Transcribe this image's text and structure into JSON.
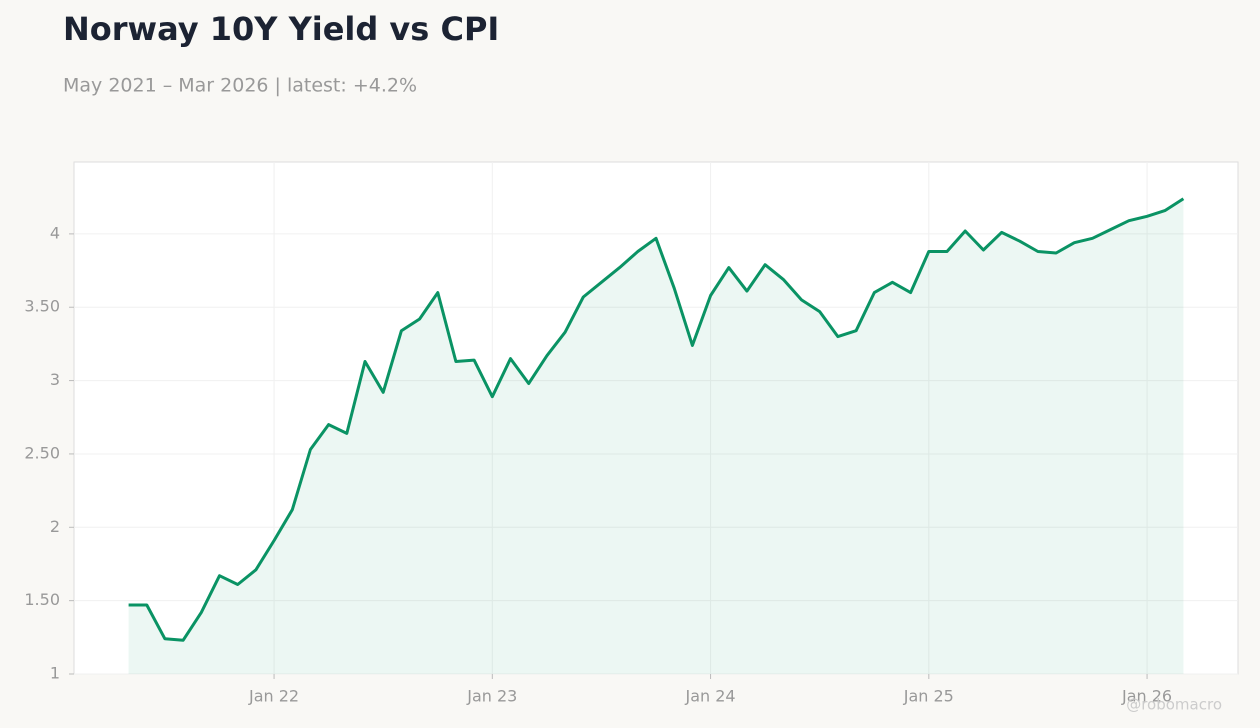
{
  "chart_data": {
    "type": "line",
    "title": "Norway 10Y Yield vs CPI",
    "subtitle": "May 2021 – Mar 2026 | latest: +4.2%",
    "watermark": "@robomacro",
    "x": [
      "2021-05",
      "2021-06",
      "2021-07",
      "2021-08",
      "2021-09",
      "2021-10",
      "2021-11",
      "2021-12",
      "2022-01",
      "2022-02",
      "2022-03",
      "2022-04",
      "2022-05",
      "2022-06",
      "2022-07",
      "2022-08",
      "2022-09",
      "2022-10",
      "2022-11",
      "2022-12",
      "2023-01",
      "2023-02",
      "2023-03",
      "2023-04",
      "2023-05",
      "2023-06",
      "2023-07",
      "2023-08",
      "2023-09",
      "2023-10",
      "2023-11",
      "2023-12",
      "2024-01",
      "2024-02",
      "2024-03",
      "2024-04",
      "2024-05",
      "2024-06",
      "2024-07",
      "2024-08",
      "2024-09",
      "2024-10",
      "2024-11",
      "2024-12",
      "2025-01",
      "2025-02",
      "2025-03",
      "2025-04",
      "2025-05",
      "2025-06",
      "2025-07",
      "2025-08",
      "2025-09",
      "2025-10",
      "2025-11",
      "2025-12",
      "2026-01",
      "2026-02",
      "2026-03"
    ],
    "series": [
      {
        "color": "#0a9364",
        "values": [
          1.47,
          1.47,
          1.24,
          1.23,
          1.42,
          1.67,
          1.61,
          1.71,
          1.91,
          2.12,
          2.53,
          2.7,
          2.64,
          3.13,
          2.92,
          3.34,
          3.42,
          3.6,
          3.13,
          3.14,
          2.89,
          3.15,
          2.98,
          3.17,
          3.33,
          3.57,
          3.67,
          3.77,
          3.88,
          3.97,
          3.63,
          3.24,
          3.58,
          3.77,
          3.61,
          3.79,
          3.69,
          3.55,
          3.47,
          3.3,
          3.34,
          3.6,
          3.67,
          3.6,
          3.88,
          3.88,
          4.02,
          3.89,
          4.01,
          3.95,
          3.88,
          3.87,
          3.94,
          3.97,
          4.03,
          4.09,
          4.12,
          4.16,
          4.24
        ]
      }
    ],
    "xlim": [
      "2021-02",
      "2026-06"
    ],
    "xticks": [
      {
        "value": "2022-01",
        "label": "Jan 22"
      },
      {
        "value": "2023-01",
        "label": "Jan 23"
      },
      {
        "value": "2024-01",
        "label": "Jan 24"
      },
      {
        "value": "2025-01",
        "label": "Jan 25"
      },
      {
        "value": "2026-01",
        "label": "Jan 26"
      }
    ],
    "ylim": [
      1,
      4.49
    ],
    "yticks": [
      1,
      {
        "value": 1.5,
        "label": "1.50"
      },
      2,
      {
        "value": 2.5,
        "label": "2.50"
      },
      3,
      {
        "value": 3.5,
        "label": "3.50"
      },
      4
    ],
    "grid": true
  }
}
